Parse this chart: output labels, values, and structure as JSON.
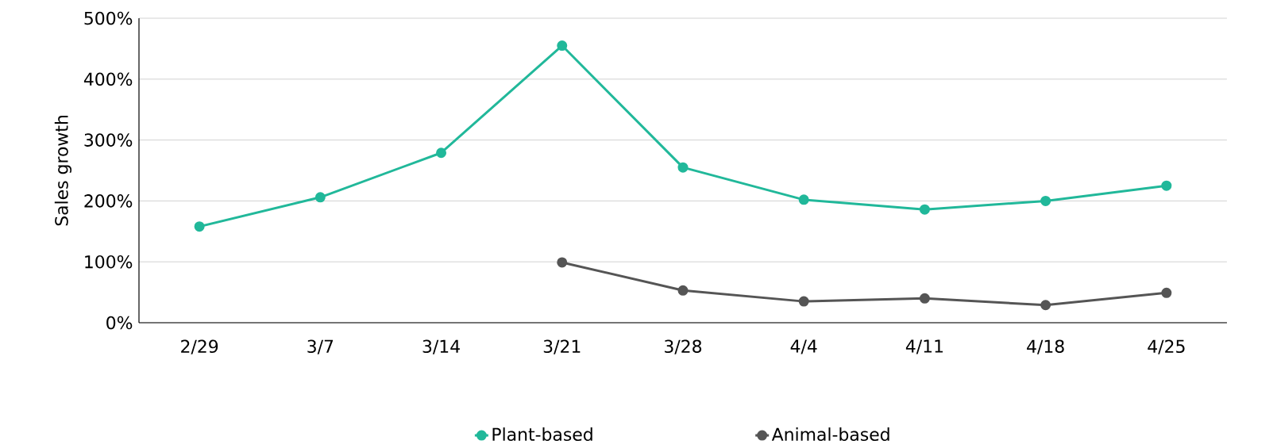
{
  "chart_data": {
    "type": "line",
    "ylabel": "Sales growth",
    "categories": [
      "2/29",
      "3/7",
      "3/14",
      "3/21",
      "3/28",
      "4/4",
      "4/11",
      "4/18",
      "4/25"
    ],
    "series": [
      {
        "name": "Plant-based",
        "color": "#21b89a",
        "values": [
          158,
          206,
          279,
          455,
          255,
          202,
          186,
          200,
          225
        ]
      },
      {
        "name": "Animal-based",
        "color": "#555555",
        "values": [
          null,
          null,
          null,
          99,
          53,
          35,
          40,
          29,
          49
        ]
      }
    ],
    "ylim": [
      0,
      500
    ],
    "yticks": [
      {
        "value": 0,
        "label": "0%"
      },
      {
        "value": 100,
        "label": "100%"
      },
      {
        "value": 200,
        "label": "200%"
      },
      {
        "value": 300,
        "label": "300%"
      },
      {
        "value": 400,
        "label": "400%"
      },
      {
        "value": 500,
        "label": "500%"
      }
    ],
    "grid": "y",
    "legend": "bottom",
    "marker": "circle",
    "line_style": "solid"
  }
}
